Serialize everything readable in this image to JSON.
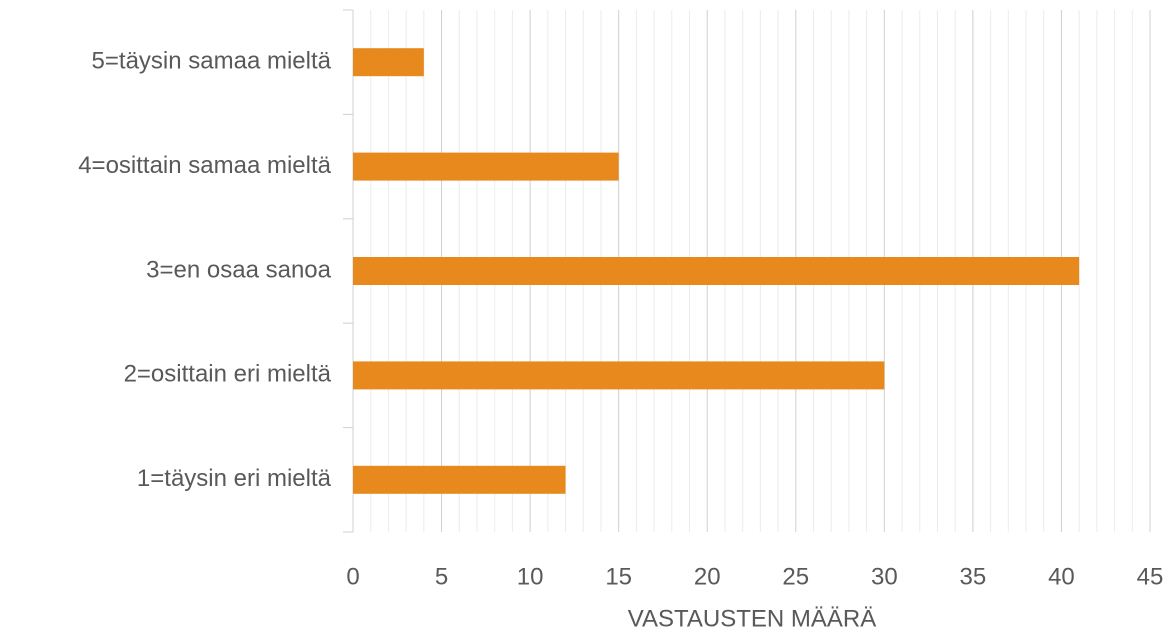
{
  "chart_data": {
    "type": "bar",
    "orientation": "horizontal",
    "x_label": "VASTAUSTEN MÄÄRÄ",
    "categories": [
      "1=täysin eri mieltä",
      "2=osittain eri mieltä",
      "3=en osaa sanoa",
      "4=osittain samaa mieltä",
      "5=täysin samaa mieltä"
    ],
    "values": [
      12,
      30,
      41,
      15,
      4
    ],
    "color": "#e8891e",
    "xlim": [
      0,
      45
    ],
    "xticks": [
      0,
      5,
      10,
      15,
      20,
      25,
      30,
      35,
      40,
      45
    ],
    "grid": true,
    "minor_grid": true
  }
}
